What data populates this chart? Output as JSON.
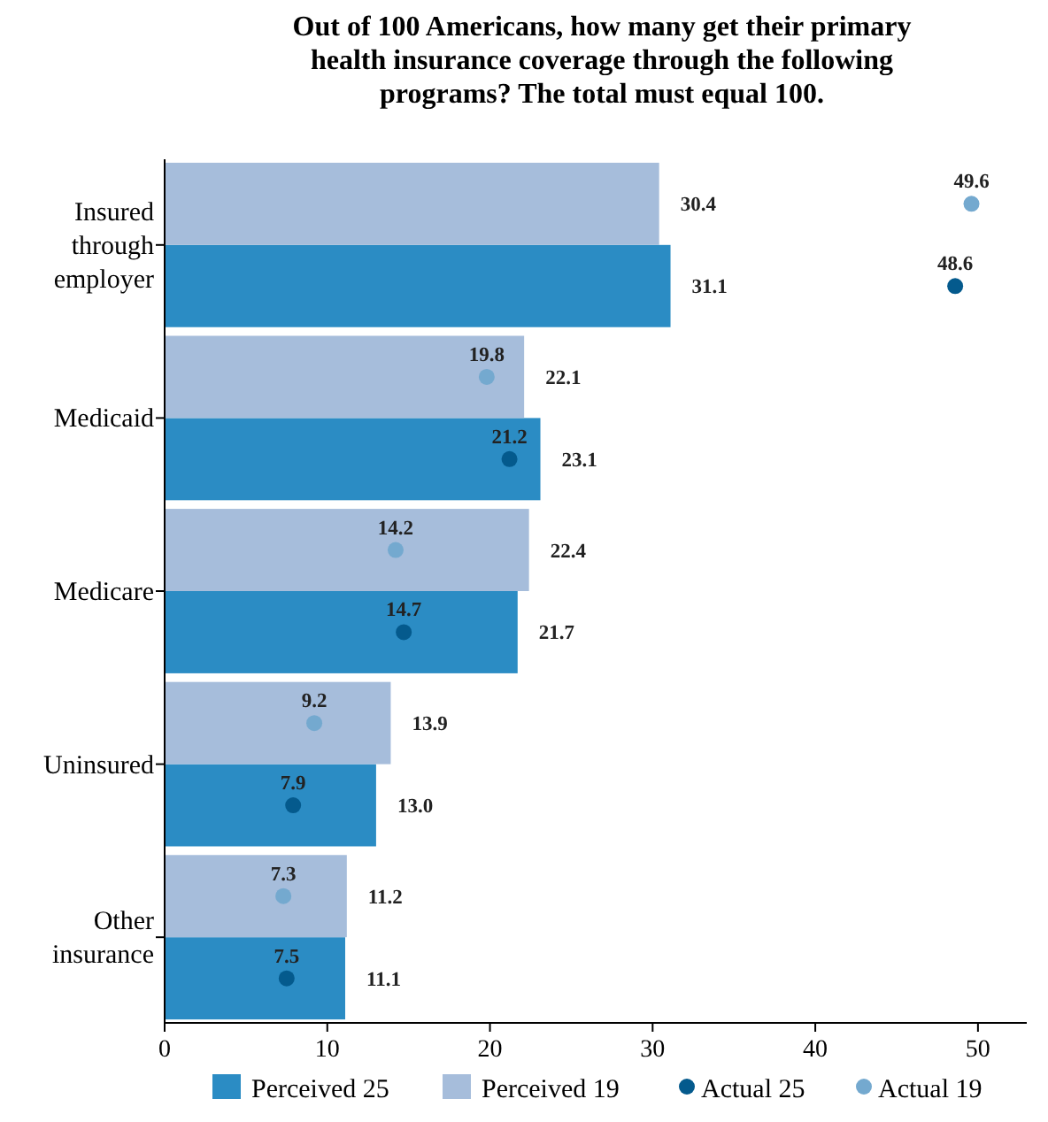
{
  "chart_data": {
    "type": "bar",
    "orientation": "horizontal",
    "title": "Out of 100 Americans, how many get their primary health insurance coverage through the following programs? The total must equal 100.",
    "categories": [
      "Insured through employer",
      "Medicaid",
      "Medicare",
      "Uninsured",
      "Other insurance"
    ],
    "series": [
      {
        "name": "Perceived 25",
        "color": "#2b8cc4",
        "values": [
          31.1,
          23.1,
          21.7,
          13.0,
          11.1
        ],
        "value_labels": [
          "31.1",
          "23.1",
          "21.7",
          "13.0",
          "11.1"
        ]
      },
      {
        "name": "Perceived 19",
        "color": "#a6bddb",
        "values": [
          30.4,
          22.1,
          22.4,
          13.9,
          11.2
        ]
      },
      {
        "name": "Actual 25",
        "type": "scatter",
        "color": "#045a8d",
        "values": [
          48.6,
          21.2,
          14.7,
          7.9,
          7.5
        ]
      },
      {
        "name": "Actual 19",
        "type": "scatter",
        "color": "#74a9cf",
        "values": [
          49.6,
          19.8,
          14.2,
          9.2,
          7.3
        ]
      }
    ],
    "xlim": [
      0,
      53
    ],
    "xticks": [
      0,
      10,
      20,
      30,
      40,
      50
    ],
    "data_labels": true,
    "grid": false,
    "legend": "bottom",
    "marker": "circle"
  }
}
